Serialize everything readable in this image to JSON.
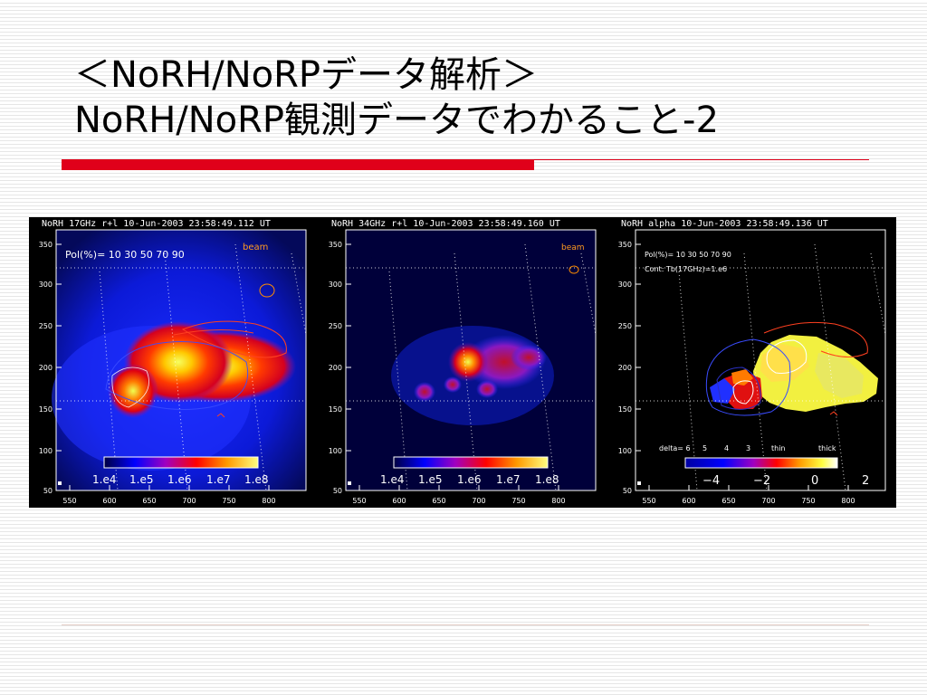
{
  "slide": {
    "title_line1": "＜NoRH/NoRPデータ解析＞",
    "title_line2": "NoRH/NoRP観測データでわかること-2"
  },
  "panels": [
    {
      "header": "NoRH 17GHz r+l 10-Jun-2003 23:58:49.112 UT",
      "annotations": [
        "Pol(%)= 10 30 50 70 90"
      ],
      "beam_label": "beam",
      "colorbar_labels": [
        "1.e4",
        "1.e5",
        "1.e6",
        "1.e7",
        "1.e8"
      ],
      "y_ticks": [
        "350",
        "300",
        "250",
        "200",
        "150",
        "100",
        "50"
      ],
      "x_ticks": [
        "550",
        "600",
        "650",
        "700",
        "750",
        "800"
      ]
    },
    {
      "header": "NoRH 34GHz r+l 10-Jun-2003 23:58:49.160 UT",
      "annotations": [],
      "beam_label": "beam",
      "colorbar_labels": [
        "1.e4",
        "1.e5",
        "1.e6",
        "1.e7",
        "1.e8"
      ],
      "y_ticks": [
        "350",
        "300",
        "250",
        "200",
        "150",
        "100",
        "50"
      ],
      "x_ticks": [
        "550",
        "600",
        "650",
        "700",
        "750",
        "800"
      ]
    },
    {
      "header": "NoRH alpha 10-Jun-2003 23:58:49.136 UT",
      "annotations": [
        "Pol(%)= 10 30 50 70 90",
        "Cont: Tb(17GHz)=1.e6"
      ],
      "beam_label": "",
      "delta_labels": [
        "delta= 6",
        "5",
        "4",
        "3",
        "thin",
        "thick"
      ],
      "colorbar_labels": [
        "−4",
        "−2",
        "0",
        "2"
      ],
      "y_ticks": [
        "350",
        "300",
        "250",
        "200",
        "150",
        "100",
        "50"
      ],
      "x_ticks": [
        "550",
        "600",
        "650",
        "700",
        "750",
        "800"
      ]
    }
  ],
  "colors": {
    "accent_red": "#e0001a",
    "background_stripe": "#e6e6e6"
  }
}
